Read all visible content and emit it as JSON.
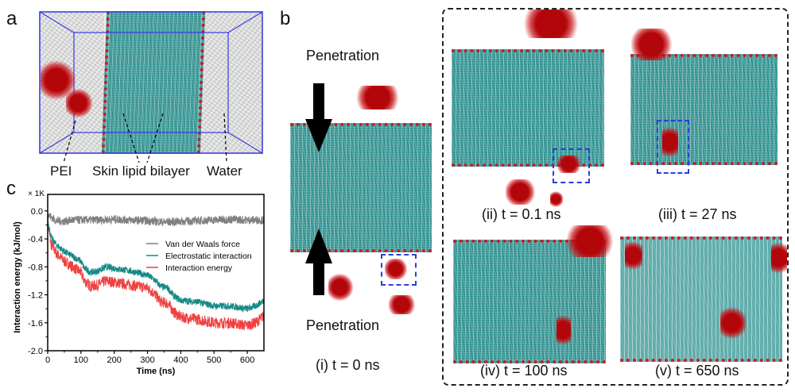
{
  "panels": {
    "a": {
      "letter": "a",
      "labels": {
        "pei": "PEI",
        "bilayer": "Skin lipid bilayer",
        "water": "Water"
      },
      "colors": {
        "box": "#3a3ae6",
        "pei": "#c0100f",
        "lipid": "#3f9e9c",
        "water": "#bdbdbd"
      }
    },
    "b": {
      "letter": "b",
      "arrow_top_label": "Penetration",
      "arrow_bottom_label": "Penetration",
      "snapshots": [
        {
          "caption": "(i) t = 0 ns"
        },
        {
          "caption": "(ii) t = 0.1 ns"
        },
        {
          "caption": "(iii) t = 27 ns"
        },
        {
          "caption": "(iv) t = 100 ns"
        },
        {
          "caption": "(v) t = 650 ns"
        }
      ]
    },
    "c": {
      "letter": "c"
    }
  },
  "chart_data": {
    "type": "line",
    "title": "",
    "xlabel": "Time (ns)",
    "ylabel": "Interaction energy (kJ/mol)",
    "y_multiplier_label": "× 1K",
    "xlim": [
      0,
      650
    ],
    "ylim": [
      -2.0,
      0.1
    ],
    "xticks": [
      0,
      100,
      200,
      300,
      400,
      500,
      600
    ],
    "yticks": [
      0.0,
      -0.4,
      -0.8,
      -1.2,
      -1.6,
      -2.0
    ],
    "ytick_labels": [
      "0.0",
      "-0.4",
      "-0.8",
      "-1.2",
      "-1.6",
      "-2.0"
    ],
    "grid": false,
    "legend_position": "center-right",
    "series": [
      {
        "name": "Van der Waals force",
        "color": "#808080",
        "x": [
          0,
          25,
          50,
          75,
          100,
          150,
          200,
          250,
          300,
          350,
          400,
          450,
          500,
          550,
          600,
          650
        ],
        "y": [
          -0.05,
          -0.14,
          -0.15,
          -0.13,
          -0.13,
          -0.13,
          -0.12,
          -0.13,
          -0.14,
          -0.16,
          -0.15,
          -0.14,
          -0.13,
          -0.12,
          -0.13,
          -0.13
        ],
        "noise": 0.06
      },
      {
        "name": "Electrostatic interaction",
        "color": "#148a86",
        "x": [
          0,
          10,
          25,
          50,
          75,
          100,
          110,
          130,
          150,
          175,
          200,
          250,
          300,
          320,
          340,
          360,
          380,
          400,
          450,
          500,
          550,
          600,
          625,
          650
        ],
        "y": [
          -0.12,
          -0.38,
          -0.48,
          -0.58,
          -0.65,
          -0.72,
          -0.82,
          -0.88,
          -0.86,
          -0.8,
          -0.82,
          -0.86,
          -0.92,
          -0.98,
          -1.08,
          -1.1,
          -1.22,
          -1.28,
          -1.3,
          -1.36,
          -1.36,
          -1.4,
          -1.36,
          -1.28
        ],
        "noise": 0.05
      },
      {
        "name": "Interaction energy",
        "color": "#f04040",
        "x": [
          0,
          10,
          25,
          50,
          75,
          100,
          110,
          130,
          150,
          175,
          200,
          250,
          300,
          320,
          340,
          360,
          380,
          400,
          450,
          500,
          550,
          600,
          625,
          650
        ],
        "y": [
          -0.15,
          -0.48,
          -0.6,
          -0.72,
          -0.8,
          -0.88,
          -1.0,
          -1.08,
          -1.06,
          -1.0,
          -1.02,
          -1.06,
          -1.1,
          -1.18,
          -1.3,
          -1.32,
          -1.45,
          -1.52,
          -1.55,
          -1.6,
          -1.6,
          -1.64,
          -1.6,
          -1.5
        ],
        "noise": 0.08
      }
    ]
  }
}
